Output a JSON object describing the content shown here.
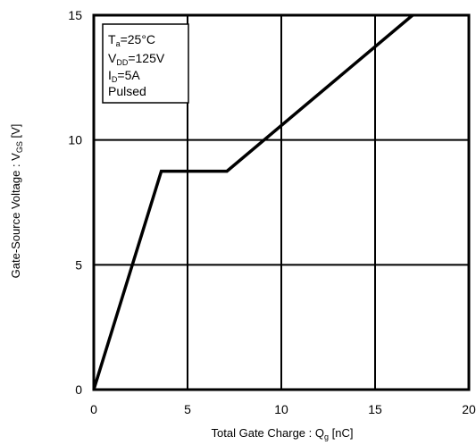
{
  "chart_data": {
    "type": "line",
    "x": [
      0,
      3.6,
      7.1,
      17
    ],
    "series": [
      {
        "values": [
          0,
          8.75,
          8.75,
          15
        ],
        "color": "#000000"
      }
    ],
    "xlim": [
      0,
      20
    ],
    "ylim": [
      0,
      15
    ],
    "xticks": [
      0,
      5,
      10,
      15,
      20
    ],
    "yticks": [
      0,
      5,
      10,
      15
    ],
    "xtick_labels": [
      "0",
      "5",
      "10",
      "15",
      "20"
    ],
    "ytick_labels": [
      "0",
      "5",
      "10",
      "15"
    ],
    "grid": true,
    "xlabel": {
      "main": "Total Gate Charge : Q",
      "sub": "g",
      "unit": " [nC]"
    },
    "ylabel": {
      "main": "Gate-Source Voltage : V",
      "sub": "GS",
      "unit": " [V]"
    },
    "annotation": {
      "placement": "top-left",
      "lines": [
        {
          "main": "T",
          "sub": "a",
          "rest": "=25°C"
        },
        {
          "main": "V",
          "sub": "DD",
          "rest": "=125V"
        },
        {
          "main": "I",
          "sub": "D",
          "rest": "=5A"
        },
        {
          "main": "Pulsed",
          "sub": "",
          "rest": ""
        }
      ]
    }
  }
}
